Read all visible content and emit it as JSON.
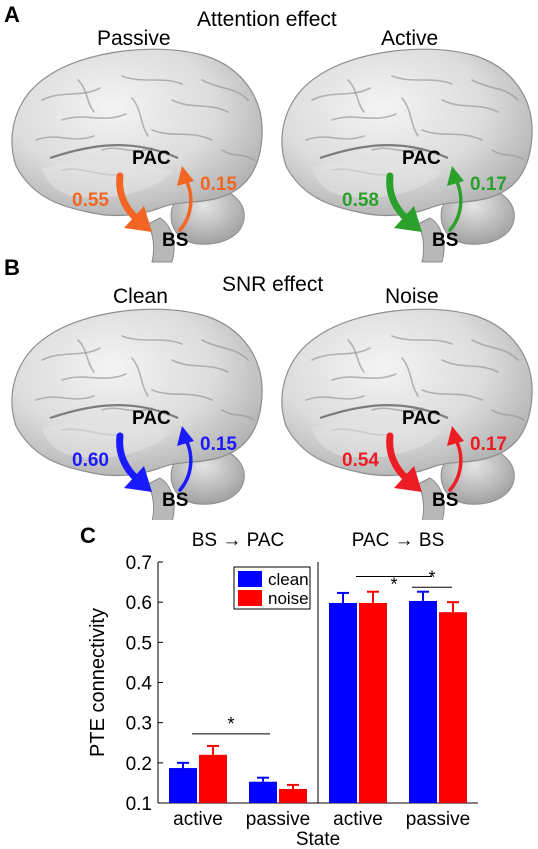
{
  "panel_a": {
    "letter": "A",
    "title": "Attention effect",
    "left": {
      "label": "Passive",
      "node_top": "PAC",
      "node_bottom": "BS",
      "down_value": "0.55",
      "up_value": "0.15",
      "color": "#f26522"
    },
    "right": {
      "label": "Active",
      "node_top": "PAC",
      "node_bottom": "BS",
      "down_value": "0.58",
      "up_value": "0.17",
      "color": "#2ca02c"
    }
  },
  "panel_b": {
    "letter": "B",
    "title": "SNR effect",
    "left": {
      "label": "Clean",
      "node_top": "PAC",
      "node_bottom": "BS",
      "down_value": "0.60",
      "up_value": "0.15",
      "color": "#1a1aff"
    },
    "right": {
      "label": "Noise",
      "node_top": "PAC",
      "node_bottom": "BS",
      "down_value": "0.54",
      "up_value": "0.17",
      "color": "#ee1c25"
    }
  },
  "panel_c": {
    "letter": "C",
    "ylabel": "PTE connectivity",
    "xlabel": "State",
    "legend": [
      "clean",
      "noise"
    ]
  },
  "chart_data": [
    {
      "type": "bar",
      "title": "BS → PAC",
      "categories": [
        "active",
        "passive"
      ],
      "series": [
        {
          "name": "clean",
          "values": [
            0.187,
            0.153
          ],
          "errors": [
            0.013,
            0.01
          ],
          "color": "#0000ff"
        },
        {
          "name": "noise",
          "values": [
            0.22,
            0.135
          ],
          "errors": [
            0.022,
            0.01
          ],
          "color": "#ff0000"
        }
      ],
      "ylim": [
        0.1,
        0.7
      ],
      "yticks": [
        "0.1",
        "0.2",
        "0.3",
        "0.4",
        "0.5",
        "0.6",
        "0.7"
      ],
      "xlabel": "State",
      "ylabel": "PTE connectivity",
      "legend": "top-right",
      "annotations": [
        "*"
      ]
    },
    {
      "type": "bar",
      "title": "PAC → BS",
      "categories": [
        "active",
        "passive"
      ],
      "series": [
        {
          "name": "clean",
          "values": [
            0.598,
            0.603
          ],
          "errors": [
            0.025,
            0.023
          ],
          "color": "#0000ff"
        },
        {
          "name": "noise",
          "values": [
            0.598,
            0.575
          ],
          "errors": [
            0.028,
            0.025
          ],
          "color": "#ff0000"
        }
      ],
      "ylim": [
        0.1,
        0.7
      ],
      "annotations": [
        "*",
        "*"
      ]
    }
  ]
}
